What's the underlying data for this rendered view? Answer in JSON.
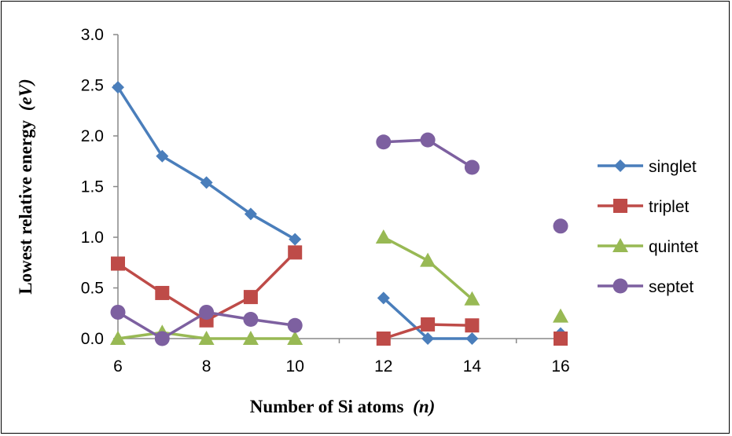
{
  "chart_data": {
    "type": "line",
    "title": "",
    "xlabel": "Number of Si atoms",
    "xlabel_var": "(n)",
    "ylabel": "Lowest relative energy",
    "ylabel_unit": "(eV)",
    "xlim": [
      6,
      16
    ],
    "ylim": [
      0,
      3.0
    ],
    "x_ticks": [
      6,
      8,
      10,
      12,
      14,
      16
    ],
    "y_ticks": [
      "0.0",
      "0.5",
      "1.0",
      "1.5",
      "2.0",
      "2.5",
      "3.0"
    ],
    "grid": false,
    "legend_position": "right",
    "series": [
      {
        "name": "singlet",
        "color": "#4a7ebb",
        "marker": "diamond",
        "segments": [
          [
            [
              6,
              2.48
            ],
            [
              7,
              1.8
            ],
            [
              8,
              1.54
            ],
            [
              9,
              1.23
            ],
            [
              10,
              0.98
            ]
          ],
          [
            [
              12,
              0.4
            ],
            [
              13,
              0.0
            ],
            [
              14,
              0.0
            ]
          ],
          [
            [
              16,
              0.05
            ]
          ]
        ]
      },
      {
        "name": "triplet",
        "color": "#be4b48",
        "marker": "square",
        "segments": [
          [
            [
              6,
              0.74
            ],
            [
              7,
              0.45
            ],
            [
              8,
              0.18
            ],
            [
              9,
              0.41
            ],
            [
              10,
              0.85
            ]
          ],
          [
            [
              12,
              0.0
            ],
            [
              13,
              0.14
            ],
            [
              14,
              0.13
            ]
          ],
          [
            [
              16,
              0.0
            ]
          ]
        ]
      },
      {
        "name": "quintet",
        "color": "#98b954",
        "marker": "triangle",
        "segments": [
          [
            [
              6,
              0.0
            ],
            [
              7,
              0.06
            ],
            [
              8,
              0.0
            ],
            [
              9,
              0.0
            ],
            [
              10,
              0.0
            ]
          ],
          [
            [
              12,
              1.0
            ],
            [
              13,
              0.77
            ],
            [
              14,
              0.39
            ]
          ],
          [
            [
              16,
              0.22
            ]
          ]
        ]
      },
      {
        "name": "septet",
        "color": "#7d60a0",
        "marker": "circle",
        "segments": [
          [
            [
              6,
              0.26
            ],
            [
              7,
              0.0
            ],
            [
              8,
              0.26
            ],
            [
              9,
              0.19
            ],
            [
              10,
              0.13
            ]
          ],
          [
            [
              12,
              1.94
            ],
            [
              13,
              1.96
            ],
            [
              14,
              1.69
            ]
          ],
          [
            [
              16,
              1.11
            ]
          ]
        ]
      }
    ]
  }
}
